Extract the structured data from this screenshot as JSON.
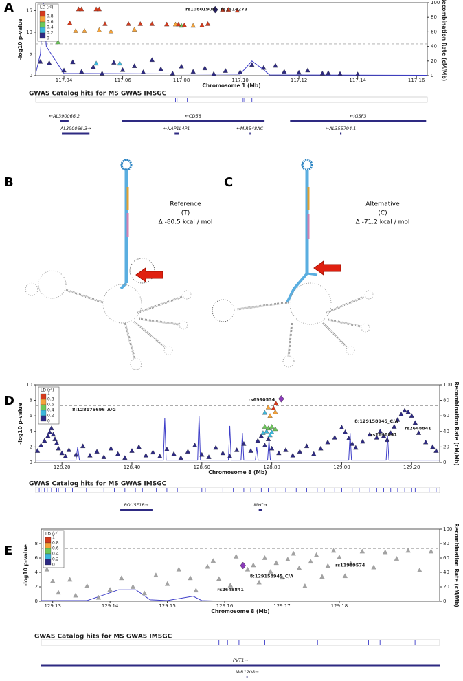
{
  "panel_labels": [
    "A",
    "B",
    "C",
    "D",
    "E"
  ],
  "structures": [
    {
      "label": "Reference",
      "allele": "(T)",
      "energy": "Δ -80.5 kcal / mol"
    },
    {
      "label": "Alternative",
      "allele": "(C)",
      "energy": "Δ -71.2 kcal / mol"
    }
  ],
  "chart_data": [
    {
      "type": "scatter",
      "xlabel": "Chromosome 1 (Mb)",
      "ylabel": "-log10 p-value",
      "y2label": "Recombination Rate (cM/Mb)",
      "xlim": [
        117.0304,
        117.1637
      ],
      "xticks": [
        117.04,
        117.06,
        117.08,
        {
          "value": 117.1,
          "label": "117.10"
        },
        117.12,
        117.14,
        117.16
      ],
      "ylim": [
        0,
        16.8
      ],
      "yticks": [
        0,
        5,
        10,
        15
      ],
      "y2lim": [
        0,
        100
      ],
      "y2ticks": [
        0,
        20,
        40,
        60,
        80,
        100
      ],
      "threshold": 7.3,
      "legend_title": "LD (r²)",
      "series": [
        {
          "name": "0.8",
          "color": "#d43a1c",
          "x": [
            117.045,
            117.046,
            117.051,
            117.052,
            117.094,
            117.096,
            117.099,
            117.042,
            117.054,
            117.062,
            117.066,
            117.07,
            117.075,
            117.079,
            117.081,
            117.087,
            117.089
          ],
          "values": [
            15.3,
            15.3,
            15.3,
            15.3,
            15.2,
            15.2,
            15.0,
            12.1,
            11.9,
            11.9,
            11.9,
            11.9,
            11.8,
            11.8,
            11.6,
            11.6,
            11.9
          ]
        },
        {
          "name": "0.6",
          "color": "#f5a33a",
          "x": [
            117.044,
            117.047,
            117.052,
            117.056,
            117.064,
            117.078,
            117.084
          ],
          "values": [
            10.3,
            10.3,
            10.5,
            10.2,
            10.6,
            11.8,
            11.5
          ]
        },
        {
          "name": "0.4",
          "color": "#6cc85a",
          "x": [
            117.038,
            117.08
          ],
          "values": [
            7.7,
            11.5
          ]
        },
        {
          "name": "0.2",
          "color": "#3bb7dc",
          "x": [
            117.051,
            117.059
          ],
          "values": [
            2.8,
            2.8
          ]
        },
        {
          "name": "0",
          "color": "#2e2a82",
          "x": [
            117.032,
            117.035,
            117.04,
            117.043,
            117.046,
            117.05,
            117.053,
            117.057,
            117.06,
            117.064,
            117.067,
            117.07,
            117.073,
            117.077,
            117.08,
            117.084,
            117.088,
            117.091,
            117.095,
            117.1,
            117.104,
            117.108,
            117.112,
            117.115,
            117.12,
            117.123,
            117.128,
            117.13,
            117.134,
            117.14
          ],
          "values": [
            3.2,
            2.9,
            1.2,
            3.1,
            0.9,
            2.0,
            0.5,
            3.0,
            1.3,
            2.2,
            0.8,
            3.6,
            1.5,
            0.5,
            2.1,
            0.9,
            1.7,
            0.4,
            1.1,
            0.8,
            2.5,
            1.8,
            2.3,
            0.9,
            0.7,
            1.2,
            0.5,
            0.6,
            0.4,
            0.3
          ]
        }
      ],
      "lead_snp": {
        "x": 117.0915,
        "value": 15.2,
        "color": "#262061"
      },
      "recombination": {
        "axis": "y2",
        "color": "#3c3cc8",
        "x": [
          117.0304,
          117.032,
          117.033,
          117.034,
          117.04,
          117.1,
          117.104,
          117.108,
          117.11,
          117.1637
        ],
        "values": [
          3,
          30,
          100,
          40,
          3,
          2,
          20,
          8,
          1,
          0.5
        ]
      },
      "annotations": [
        {
          "text": "rs10801908",
          "x": 117.0814,
          "y": 15.3
        },
        {
          "text": "rs1414273",
          "x": 117.0934,
          "y": 15.3
        }
      ],
      "gwas_track": {
        "title": "GWAS Catalog hits for MS GWAS IMSGC",
        "x": [
          117.078,
          117.0785,
          117.082,
          117.101,
          117.1015,
          117.104
        ]
      },
      "gene_rows": [
        [
          {
            "label": "←AL390066.2",
            "start": 117.0388,
            "end": 117.0416
          },
          {
            "label": "←CD58",
            "start": 117.0597,
            "end": 117.1083
          },
          {
            "label": "←IGSF3",
            "start": 117.117,
            "end": 117.1633
          }
        ],
        [
          {
            "label": "AL390066.3→",
            "start": 117.0393,
            "end": 117.0487
          },
          {
            "label": "←NAP1L4P1",
            "start": 117.0777,
            "end": 117.0791
          },
          {
            "label": "←MIR548AC",
            "start": 117.1032,
            "end": 117.1034
          },
          {
            "label": "←AL355794.1",
            "start": 117.134,
            "end": 117.1345
          }
        ]
      ]
    },
    {
      "type": "scatter",
      "xlabel": "Chromosome 8 (Mb)",
      "ylabel": "-log10 p-value",
      "y2label": "Recombination Rate (cM/Mb)",
      "xlim": [
        128.125,
        129.28
      ],
      "xticks": [
        {
          "value": 128.2,
          "label": "128.20"
        },
        {
          "value": 128.4,
          "label": "128.40"
        },
        {
          "value": 128.6,
          "label": "128.60"
        },
        {
          "value": 128.8,
          "label": "128.80"
        },
        {
          "value": 129.0,
          "label": "129.00"
        },
        {
          "value": 129.2,
          "label": "129.20"
        }
      ],
      "ylim": [
        0,
        10
      ],
      "yticks": [
        0,
        2,
        4,
        6,
        8,
        10
      ],
      "y2lim": [
        0,
        100
      ],
      "y2ticks": [
        0,
        20,
        40,
        60,
        80,
        100
      ],
      "threshold": 7.3,
      "legend_title": "LD (r²)",
      "legend_top": "1",
      "series": [
        {
          "name": "0.8",
          "color": "#d43a1c",
          "x": [
            128.812,
            128.805
          ],
          "values": [
            7.6,
            7.0
          ]
        },
        {
          "name": "0.6",
          "color": "#f5a33a",
          "x": [
            128.79,
            128.81,
            128.795
          ],
          "values": [
            7.1,
            6.5,
            6.0
          ]
        },
        {
          "name": "0.4",
          "color": "#6cc85a",
          "x": [
            128.78,
            128.79,
            128.8,
            128.81
          ],
          "values": [
            4.6,
            4.4,
            4.6,
            4.3
          ]
        },
        {
          "name": "0.2",
          "color": "#3bb7dc",
          "x": [
            128.785,
            128.795,
            128.8,
            128.78,
            128.775
          ],
          "values": [
            4.0,
            3.5,
            3.9,
            6.4,
            3.8
          ]
        },
        {
          "name": "0",
          "color": "#2e2a82",
          "x": [
            128.13,
            128.14,
            128.15,
            128.16,
            128.165,
            128.17,
            128.175,
            128.18,
            128.185,
            128.19,
            128.2,
            128.21,
            128.22,
            128.24,
            128.26,
            128.28,
            128.3,
            128.32,
            128.34,
            128.36,
            128.38,
            128.4,
            128.42,
            128.44,
            128.46,
            128.48,
            128.5,
            128.52,
            128.54,
            128.56,
            128.58,
            128.6,
            128.62,
            128.64,
            128.66,
            128.68,
            128.7,
            128.72,
            128.74,
            128.76,
            128.77,
            128.78,
            128.79,
            128.8,
            128.82,
            128.84,
            128.86,
            128.88,
            128.9,
            128.92,
            128.94,
            128.96,
            128.98,
            129.0,
            129.01,
            129.02,
            129.03,
            129.04,
            129.06,
            129.08,
            129.1,
            129.11,
            129.12,
            129.13,
            129.14,
            129.15,
            129.16,
            129.17,
            129.18,
            129.19,
            129.2,
            129.21,
            129.22,
            129.24,
            129.26,
            129.27
          ],
          "values": [
            1.5,
            2.2,
            2.8,
            3.4,
            3.9,
            4.4,
            3.6,
            3.0,
            2.5,
            1.8,
            1.2,
            0.8,
            1.6,
            1.0,
            2.1,
            0.9,
            1.4,
            0.7,
            1.8,
            1.1,
            0.6,
            1.5,
            2.0,
            0.9,
            1.3,
            0.8,
            1.7,
            1.1,
            0.6,
            1.4,
            2.2,
            1.0,
            0.7,
            1.9,
            1.2,
            0.8,
            1.6,
            2.4,
            1.5,
            2.8,
            3.4,
            2.2,
            3.0,
            1.8,
            1.2,
            1.6,
            0.9,
            1.4,
            2.1,
            1.1,
            1.8,
            2.6,
            3.2,
            4.5,
            3.9,
            3.1,
            2.4,
            1.9,
            2.7,
            3.6,
            3.2,
            4.0,
            3.4,
            2.9,
            3.8,
            4.6,
            5.5,
            6.2,
            6.7,
            6.5,
            6.0,
            5.1,
            3.8,
            2.6,
            2.0,
            1.5
          ]
        }
      ],
      "lead_snp": {
        "x": 128.827,
        "value": 8.2,
        "color": "#8a3ab9"
      },
      "recombination": {
        "axis": "y2",
        "color": "#3c3cc8",
        "x": [
          128.125,
          128.24,
          128.245,
          128.25,
          128.49,
          128.494,
          128.498,
          128.588,
          128.592,
          128.596,
          128.676,
          128.68,
          128.684,
          128.712,
          128.716,
          128.72,
          128.753,
          128.757,
          128.761,
          128.788,
          128.792,
          128.796,
          129.02,
          129.024,
          129.028,
          129.127,
          129.131,
          129.135,
          129.28
        ],
        "values": [
          3,
          3,
          20,
          3,
          3,
          57,
          3,
          3,
          60,
          3,
          3,
          47,
          3,
          3,
          38,
          3,
          3,
          20,
          3,
          3,
          29,
          3,
          3,
          38,
          3,
          3,
          34,
          3,
          3
        ]
      },
      "annotations": [
        {
          "text": "rs6990534",
          "x": 128.733,
          "y": 8.1
        },
        {
          "text": "8:128175696_A/G",
          "x": 128.229,
          "y": 6.8
        },
        {
          "text": "8:129158945_C/A",
          "x": 129.037,
          "y": 5.3
        },
        {
          "text": "rs2648841",
          "x": 129.082,
          "y": 3.6
        },
        {
          "text": "rs2648841",
          "x": 129.18,
          "y": 4.4
        }
      ],
      "gwas_track": {
        "title": "GWAS Catalog hits for MS GWAS IMSGC",
        "x": [
          128.135,
          128.14,
          128.15,
          128.158,
          128.17,
          128.185,
          128.19,
          128.21,
          128.23,
          128.27,
          128.32,
          128.35,
          128.38,
          128.41,
          128.43,
          128.47,
          128.5,
          128.53,
          128.56,
          128.6,
          128.61,
          128.66,
          128.69,
          128.72,
          128.74,
          128.77,
          128.79,
          128.81,
          128.84,
          128.87,
          128.9,
          128.93,
          128.95,
          128.98,
          129.0,
          129.03,
          129.05,
          129.08,
          129.1,
          129.12,
          129.14,
          129.16,
          129.18,
          129.2,
          129.21,
          129.23,
          129.25,
          129.27
        ]
      },
      "gene_rows": [
        [
          {
            "label": "POU5F1B→",
            "start": 128.3667,
            "end": 128.4588
          },
          {
            "label": "MYC→",
            "start": 128.7627,
            "end": 128.7725
          }
        ]
      ]
    },
    {
      "type": "scatter",
      "xlabel": "Chromosome 8 (Mb)",
      "ylabel": "-log10 p-value",
      "y2label": "Recombination Rate (cM/Mb)",
      "xlim": [
        129.128,
        129.1975
      ],
      "xticks": [
        129.13,
        129.14,
        129.15,
        129.16,
        129.17,
        129.18
      ],
      "ylim": [
        0,
        10
      ],
      "yticks": [
        0,
        2,
        4,
        6,
        8
      ],
      "y2lim": [
        0,
        100
      ],
      "y2ticks": [
        0,
        20,
        40,
        60,
        80,
        100
      ],
      "threshold": 7.3,
      "legend_title": "LD (r²)",
      "legend_top": "1",
      "series": [
        {
          "name": "0.8",
          "color": "#d43a1c",
          "x": [],
          "values": []
        },
        {
          "name": "0.6",
          "color": "#f5a33a",
          "x": [],
          "values": []
        },
        {
          "name": "0.4",
          "color": "#6cc85a",
          "x": [],
          "values": []
        },
        {
          "name": "0.2",
          "color": "#3bb7dc",
          "x": [],
          "values": []
        },
        {
          "name": "0",
          "color": "#2e2a82",
          "x": [],
          "values": []
        }
      ],
      "others": {
        "color": "#a3a3a3",
        "x": [
          129.129,
          129.13,
          129.131,
          129.133,
          129.134,
          129.136,
          129.138,
          129.14,
          129.142,
          129.144,
          129.146,
          129.148,
          129.15,
          129.152,
          129.154,
          129.155,
          129.157,
          129.158,
          129.159,
          129.161,
          129.162,
          129.164,
          129.165,
          129.166,
          129.167,
          129.168,
          129.169,
          129.17,
          129.171,
          129.172,
          129.173,
          129.174,
          129.175,
          129.176,
          129.177,
          129.178,
          129.179,
          129.18,
          129.181,
          129.182,
          129.184,
          129.186,
          129.188,
          129.19,
          129.192,
          129.194,
          129.196
        ],
        "values": [
          4.4,
          2.8,
          1.2,
          3.0,
          0.8,
          2.1,
          0.5,
          1.6,
          3.2,
          2.0,
          1.1,
          3.6,
          2.4,
          4.4,
          3.2,
          1.5,
          4.8,
          5.6,
          3.1,
          2.2,
          6.2,
          4.4,
          5.0,
          2.6,
          6.0,
          4.1,
          5.3,
          3.3,
          5.8,
          6.6,
          4.6,
          2.1,
          5.5,
          6.4,
          3.4,
          4.9,
          7.0,
          6.1,
          3.5,
          5.2,
          6.9,
          4.7,
          6.8,
          5.9,
          7.0,
          4.3,
          6.9
        ]
      },
      "lead_snp": {
        "x": 129.1632,
        "value": 4.95,
        "color": "#8a3ab9"
      },
      "recombination": {
        "axis": "y2",
        "color": "#3c3cc8",
        "x": [
          129.128,
          129.136,
          129.139,
          129.1415,
          129.1445,
          129.147,
          129.15,
          129.1545,
          129.156,
          129.158,
          129.1975
        ],
        "values": [
          1,
          1,
          9,
          16,
          16,
          2,
          1,
          7,
          1,
          0.5,
          0.5
        ]
      },
      "annotations": [
        {
          "text": "rs11989574",
          "x": 129.1793,
          "y": 5.0
        },
        {
          "text": "8:129158945_C/A",
          "x": 129.1644,
          "y": 3.5
        },
        {
          "text": "rs2648841",
          "x": 129.1587,
          "y": 1.6
        }
      ],
      "gwas_track": {
        "title": "GWAS Catalog hits for MS GWAS IMSGC",
        "x": [
          129.159,
          129.1605,
          129.1625,
          129.167,
          129.1762,
          129.1851,
          129.1871,
          129.1932
        ]
      },
      "gene_rows": [
        [
          {
            "label": "PVT1→",
            "start": 129.128,
            "end": 129.1975
          }
        ],
        [
          {
            "label": "MIR1208→",
            "start": 129.1638,
            "end": 129.164
          }
        ]
      ]
    }
  ]
}
